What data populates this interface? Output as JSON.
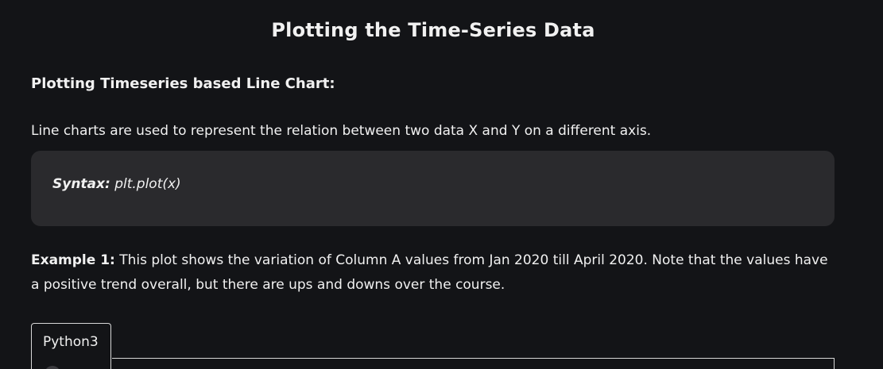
{
  "article": {
    "title": "Plotting the Time-Series Data",
    "subheading": "Plotting Timeseries based Line Chart:",
    "paragraph": "Line charts are used to represent the relation between two data X and Y on a different axis.",
    "syntax": {
      "label": "Syntax:",
      "code": "plt.plot(x)"
    },
    "example": {
      "label": "Example 1:",
      "text": "This plot shows the variation of Column A values from Jan 2020 till April 2020. Note that the values have a positive trend overall, but there are ups and downs over the course."
    },
    "code_tabs": [
      {
        "label": "Python3",
        "active": true
      }
    ]
  },
  "colors": {
    "background": "#131417",
    "syntax_box": "#2a2a2d",
    "text": "#f1f1f1",
    "border": "#d7d7d7"
  }
}
